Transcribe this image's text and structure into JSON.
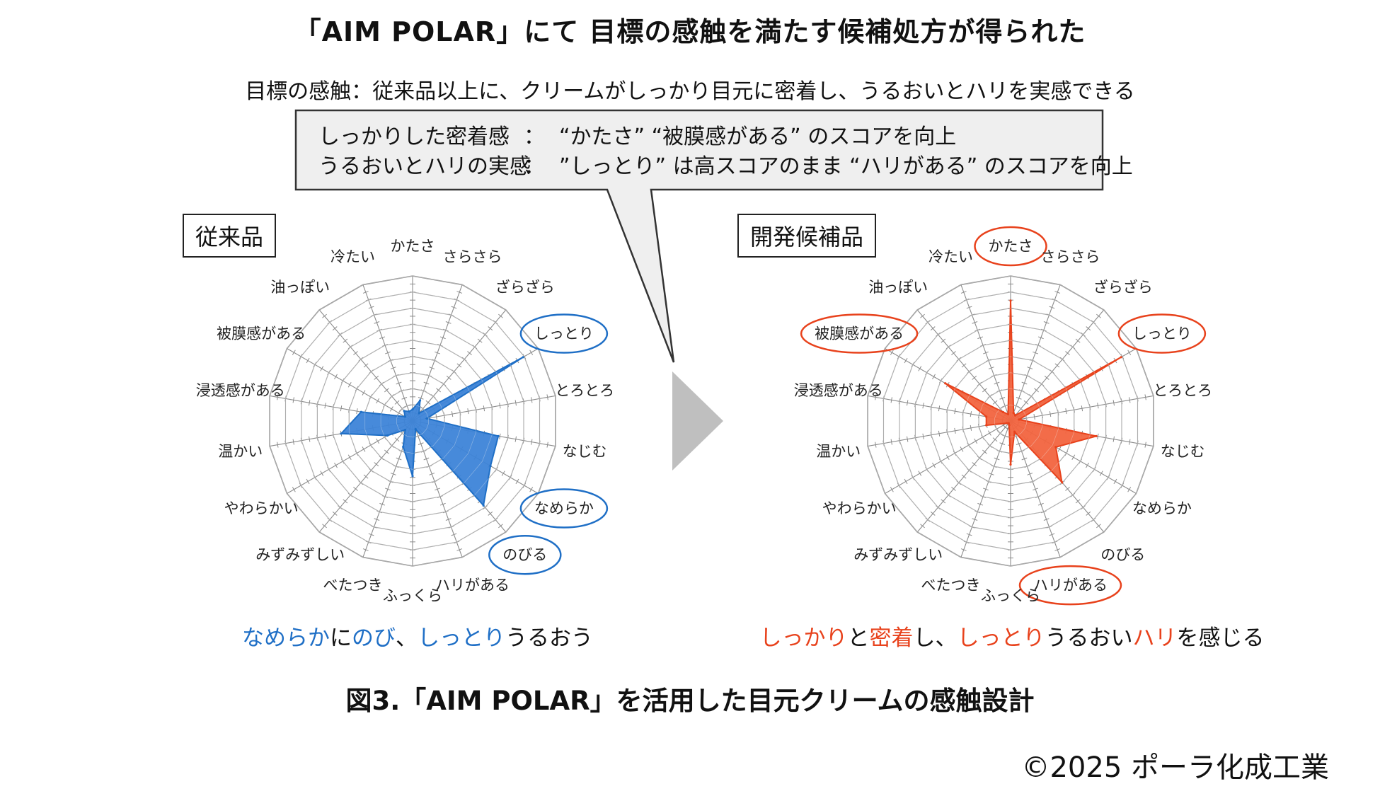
{
  "title": "「AIM POLAR」にて 目標の感触を満たす候補処方が得られた",
  "goal_text": "目標の感触：従来品以上に、クリームがしっかり目元に密着し、うるおいとハリを実感できる",
  "callout": {
    "line1_label": "しっかりした密着感",
    "line1_sep": "：",
    "line1_text": "“かたさ” “被膜感がある” のスコアを向上",
    "line2_label": "うるおいとハリの実感",
    "line2_sep": "：",
    "line2_text": "”しっとり” は高スコアのまま “ハリがある” のスコアを向上"
  },
  "colors": {
    "blue": "#1f6fc6",
    "blue_fill": "#3d84d8",
    "red": "#e8421c",
    "red_fill": "#f2643f",
    "arrow": "#bfbfbf",
    "grid": "#8c8c8c"
  },
  "chart_data": [
    {
      "type": "radar",
      "title": "従来品",
      "categories": [
        "かたさ",
        "さらさら",
        "ざらざら",
        "しっとり",
        "とろとろ",
        "なじむ",
        "なめらか",
        "のびる",
        "ハリがある",
        "ふっくら",
        "べたつき",
        "みずみずしい",
        "やわらかい",
        "温かい",
        "浸透感がある",
        "被膜感がある",
        "油っぽい",
        "冷たい"
      ],
      "values": [
        0.8,
        1.5,
        0.7,
        8.8,
        1.0,
        6.0,
        6.2,
        7.6,
        0.6,
        3.8,
        1.9,
        0.8,
        2.0,
        5.0,
        3.6,
        0.6,
        0.9,
        0.7
      ],
      "rmax": 10,
      "rings": 9,
      "highlighted": [
        "しっとり",
        "なめらか",
        "のびる"
      ],
      "caption": [
        {
          "text": "なめらか",
          "color": "blue"
        },
        {
          "text": "に",
          "color": "black"
        },
        {
          "text": "のび",
          "color": "blue"
        },
        {
          "text": "、",
          "color": "black"
        },
        {
          "text": "しっとり",
          "color": "blue"
        },
        {
          "text": "うるおう",
          "color": "black"
        }
      ]
    },
    {
      "type": "radar",
      "title": "開発候補品",
      "categories": [
        "かたさ",
        "さらさら",
        "ざらざら",
        "しっとり",
        "とろとろ",
        "なじむ",
        "なめらか",
        "のびる",
        "ハリがある",
        "ふっくら",
        "べたつき",
        "みずみずしい",
        "やわらかい",
        "温かい",
        "浸透感がある",
        "被膜感がある",
        "油っぽい",
        "冷たい"
      ],
      "values": [
        8.3,
        0.6,
        0.5,
        8.8,
        0.6,
        6.0,
        3.6,
        5.5,
        0.8,
        3.0,
        0.3,
        0.2,
        0.3,
        1.7,
        1.7,
        5.2,
        0.8,
        0.5
      ],
      "rmax": 10,
      "rings": 9,
      "highlighted": [
        "かたさ",
        "しっとり",
        "被膜感がある",
        "ハリがある"
      ],
      "caption": [
        {
          "text": "しっかり",
          "color": "red"
        },
        {
          "text": "と",
          "color": "black"
        },
        {
          "text": "密着",
          "color": "red"
        },
        {
          "text": "し、",
          "color": "black"
        },
        {
          "text": "しっとり",
          "color": "red"
        },
        {
          "text": "うるおい",
          "color": "black"
        },
        {
          "text": "ハリ",
          "color": "red"
        },
        {
          "text": "を感じる",
          "color": "black"
        }
      ]
    }
  ],
  "figure_caption": "図3.「AIM POLAR」を活用した目元クリームの感触設計",
  "copyright": "©2025 ポーラ化成工業"
}
